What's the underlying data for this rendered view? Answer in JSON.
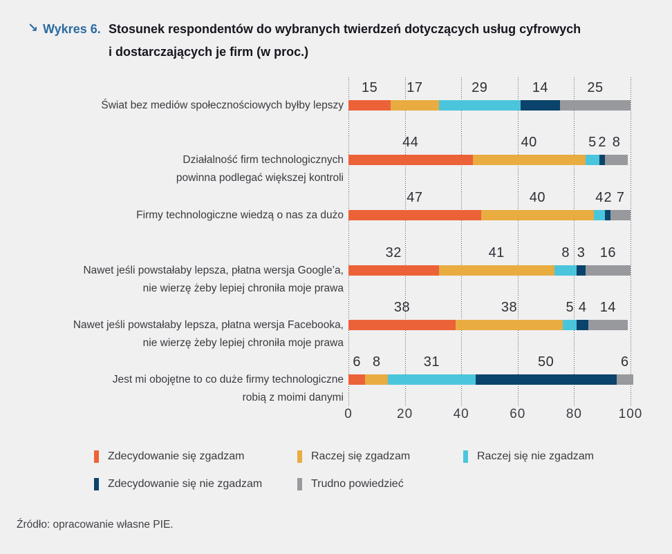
{
  "title": {
    "arrow": "↘",
    "tag": "Wykres 6.",
    "line1": "Stosunek respondentów do wybranych twierdzeń dotyczących usług cyfrowych",
    "line2": "i dostarczających je firm (w proc.)"
  },
  "source": "Źródło: opracowanie własne PIE.",
  "colors": {
    "accent_blue": "#2B6B9F",
    "background": "#F0F0F1"
  },
  "chart_data": {
    "type": "bar",
    "stacked": true,
    "orientation": "horizontal",
    "title": "Stosunek respondentów do wybranych twierdzeń dotyczących usług cyfrowych i dostarczających je firm (w proc.)",
    "xlabel": "",
    "ylabel": "",
    "xlim": [
      0,
      100
    ],
    "x_ticks": [
      0,
      20,
      40,
      60,
      80,
      100
    ],
    "grid": "dotted-vertical",
    "legend_position": "bottom",
    "categories": [
      [
        "Świat bez mediów społecznościowych byłby lepszy"
      ],
      [
        "Działalność firm technologicznych",
        "powinna podlegać większej kontroli"
      ],
      [
        "Firmy technologiczne wiedzą o nas za dużo"
      ],
      [
        "Nawet jeśli powstałaby lepsza, płatna wersja Google’a,",
        "nie wierzę żeby lepiej chroniła moje prawa"
      ],
      [
        "Nawet jeśli powstałaby lepsza, płatna wersja Facebooka,",
        "nie wierzę żeby lepiej chroniła moje prawa"
      ],
      [
        "Jest mi obojętne to co duże firmy technologiczne",
        "robią z moimi danymi"
      ]
    ],
    "series": [
      {
        "name": "Zdecydowanie się zgadzam",
        "color": "#EC6238",
        "values": [
          15,
          44,
          47,
          32,
          38,
          6
        ]
      },
      {
        "name": "Raczej się zgadzam",
        "color": "#E8AC41",
        "values": [
          17,
          40,
          40,
          41,
          38,
          8
        ]
      },
      {
        "name": "Raczej się nie zgadzam",
        "color": "#4BC5DB",
        "values": [
          29,
          5,
          4,
          8,
          5,
          31
        ]
      },
      {
        "name": "Zdecydowanie się nie zgadzam",
        "color": "#0A436B",
        "values": [
          14,
          2,
          2,
          3,
          4,
          50
        ]
      },
      {
        "name": "Trudno powiedzieć",
        "color": "#98999D",
        "values": [
          25,
          8,
          7,
          16,
          14,
          6
        ]
      }
    ]
  }
}
